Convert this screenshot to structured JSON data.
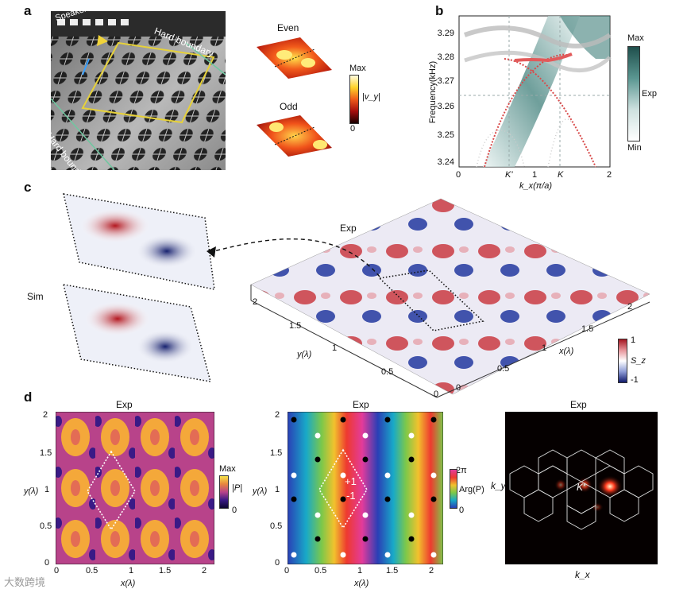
{
  "panel_labels": {
    "a": "a",
    "b": "b",
    "c": "c",
    "d": "d"
  },
  "panel_a": {
    "photo_labels": {
      "speakers": "Speakers",
      "hard_boundary_top": "Hard boundary",
      "hard_boundary_left": "Hard boundary"
    },
    "mode_even": "Even",
    "mode_odd": "Odd",
    "colorbar": {
      "max": "Max",
      "min": "0",
      "label": "|v_y|"
    }
  },
  "panel_b": {
    "ylabel": "Frequency(kHz)",
    "xlabel": "k_x(π/a)",
    "yticks": [
      "3.29",
      "3.28",
      "3.27",
      "3.26",
      "3.25",
      "3.24"
    ],
    "xticks": [
      "0",
      "K'",
      "1",
      "K",
      "2"
    ],
    "colorbar": {
      "max": "Max",
      "mid": "Exp",
      "min": "Min"
    }
  },
  "panel_c": {
    "exp_label": "Exp",
    "sim_label": "Sim",
    "y_axis_label": "y(λ)",
    "x_axis_label": "x(λ)",
    "y_ticks": [
      "2",
      "1.5",
      "1",
      "0.5",
      "0"
    ],
    "x_ticks": [
      "0",
      "0.5",
      "1",
      "1.5",
      "2"
    ],
    "colorbar": {
      "max": "1",
      "min": "-1",
      "label": "S_z"
    }
  },
  "panel_d": {
    "left": {
      "title": "Exp",
      "xlabel": "x(λ)",
      "ylabel": "y(λ)",
      "xticks": [
        "0",
        "0.5",
        "1",
        "1.5",
        "2"
      ],
      "yticks": [
        "2",
        "1.5",
        "1",
        "0.5",
        "0"
      ],
      "colorbar": {
        "max": "Max",
        "min": "0",
        "label": "|P|"
      }
    },
    "middle": {
      "title": "Exp",
      "xlabel": "x(λ)",
      "ylabel": "y(λ)",
      "xticks": [
        "0",
        "0.5",
        "1",
        "1.5",
        "2"
      ],
      "yticks": [
        "2",
        "1.5",
        "1",
        "0.5",
        "0"
      ],
      "plus": "+1",
      "minus": "-1",
      "colorbar": {
        "max": "2π",
        "min": "0",
        "label": "Arg(P)"
      }
    },
    "right": {
      "title": "Exp",
      "xlabel": "k_x",
      "ylabel": "k_y",
      "k_label": "K'"
    }
  },
  "watermark": "大数跨境",
  "colors": {
    "teal": "#3f7f7a",
    "red": "#d84a4a",
    "blue": "#1f3f9a"
  }
}
